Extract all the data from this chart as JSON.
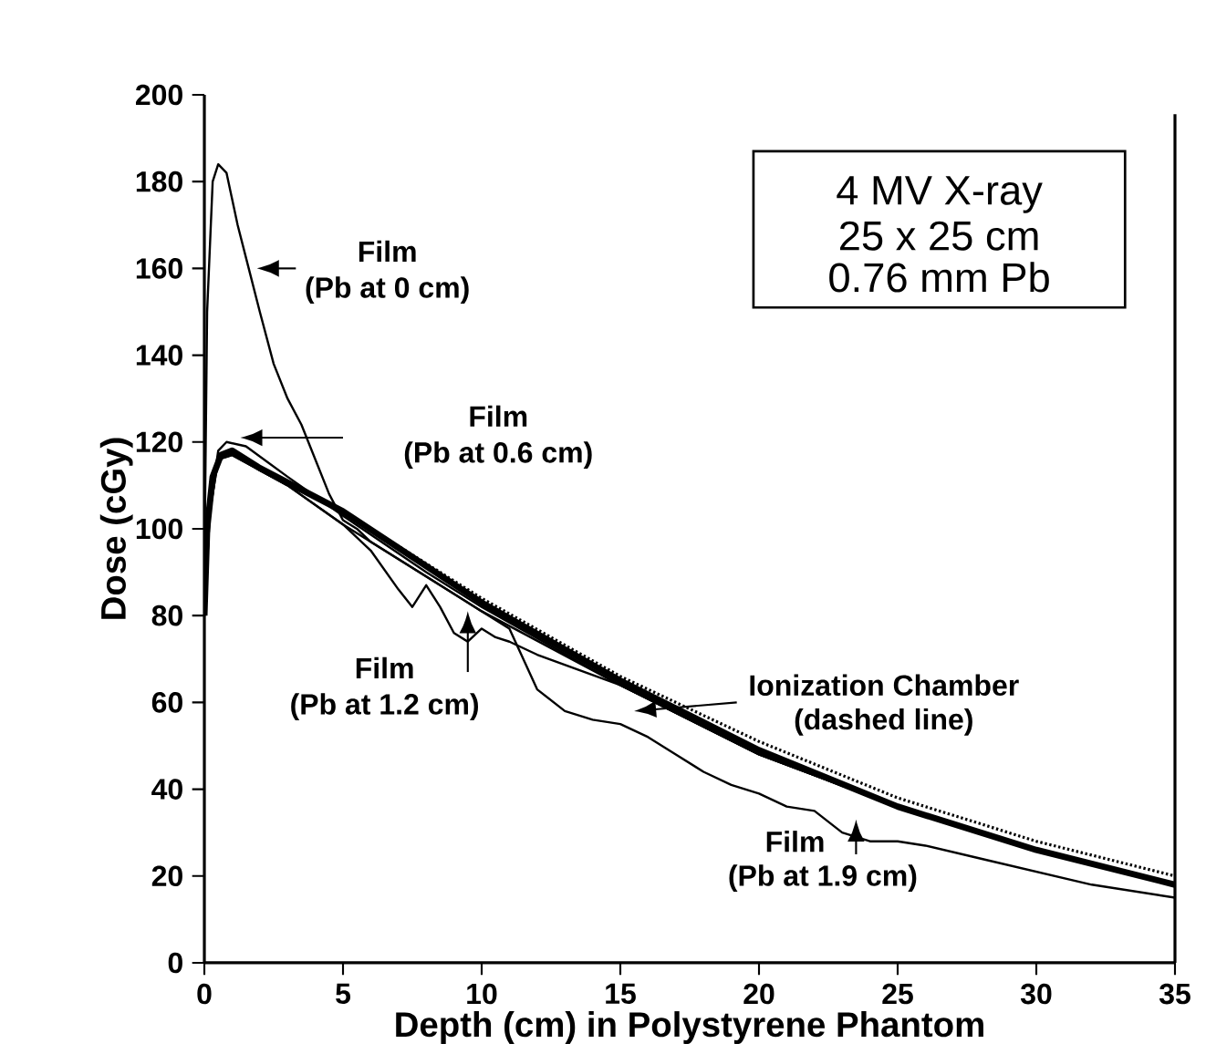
{
  "chart_data": {
    "type": "line",
    "xlabel": "Depth (cm) in Polystyrene Phantom",
    "ylabel": "Dose (cGy)",
    "xlim": [
      0,
      35
    ],
    "xticks": [
      0,
      5,
      10,
      15,
      20,
      25,
      30,
      35
    ],
    "ylim": [
      0,
      200
    ],
    "yticks": [
      0,
      20,
      40,
      60,
      80,
      100,
      120,
      140,
      160,
      180,
      200
    ],
    "grid": false,
    "marker": "none",
    "series": [
      {
        "color": "#000000",
        "line_style": "solid",
        "x": [
          0,
          0.1,
          0.3,
          0.5,
          0.8,
          1.2,
          1.6,
          2,
          2.5,
          3,
          3.5,
          4,
          4.5,
          5,
          5.5,
          6,
          8,
          10,
          15,
          20,
          25,
          30,
          35
        ],
        "values": [
          90,
          150,
          180,
          184,
          182,
          170,
          160,
          150,
          138,
          130,
          124,
          116,
          108,
          102,
          100,
          97,
          89,
          81,
          64,
          48,
          36,
          26,
          18
        ]
      },
      {
        "color": "#000000",
        "line_style": "solid",
        "x": [
          0,
          0.2,
          0.5,
          0.8,
          1.5,
          3,
          5,
          8,
          10,
          15,
          20,
          25,
          30,
          35
        ],
        "values": [
          80,
          105,
          118,
          120,
          119,
          112,
          103,
          90,
          82,
          64,
          48,
          36,
          26,
          18
        ]
      },
      {
        "color": "#000000",
        "line_style": "solid",
        "x": [
          0,
          0.2,
          0.5,
          1,
          3,
          5,
          6,
          7,
          7.5,
          8,
          8.5,
          9,
          9.5,
          10,
          10.5,
          11,
          12,
          15,
          20,
          25,
          30,
          35
        ],
        "values": [
          80,
          104,
          116,
          117,
          110,
          101,
          95,
          86,
          82,
          87,
          82,
          76,
          74,
          77,
          75,
          74,
          71,
          64,
          48,
          36,
          26,
          18
        ]
      },
      {
        "color": "#000000",
        "line_style": "solid",
        "x": [
          0,
          0.2,
          0.5,
          1,
          3,
          5,
          8,
          10,
          11,
          11.5,
          12,
          13,
          14,
          15,
          16,
          17,
          18,
          19,
          20,
          21,
          22,
          23,
          24,
          25,
          26,
          28,
          30,
          32,
          35
        ],
        "values": [
          80,
          104,
          116,
          117,
          110,
          101,
          89,
          81,
          77,
          70,
          63,
          58,
          56,
          55,
          52,
          48,
          44,
          41,
          39,
          36,
          35,
          30,
          28,
          28,
          27,
          24,
          21,
          18,
          15
        ]
      },
      {
        "color": "#000000",
        "line_style": "solid",
        "x": [
          0,
          0.1,
          0.3,
          0.6,
          1,
          2,
          5,
          10,
          15,
          20,
          25,
          30,
          35
        ],
        "values": [
          80,
          100,
          112,
          117,
          118,
          114,
          104,
          83,
          65,
          49,
          36,
          26,
          18
        ]
      },
      {
        "color": "#000000",
        "line_style": "dashed",
        "x": [
          2,
          5,
          10,
          15,
          20,
          25,
          30,
          35
        ],
        "values": [
          114,
          104,
          84,
          66,
          51,
          38,
          28,
          20
        ]
      }
    ],
    "annotations": [
      "4 MV X-ray",
      "25 x 25 cm",
      "0.76 mm Pb",
      "Film",
      "(Pb at 0 cm)",
      "Film",
      "(Pb at 0.6 cm)",
      "Film",
      "(Pb at 1.2 cm)",
      "Ionization Chamber",
      "(dashed line)",
      "Film",
      "(Pb at 1.9 cm)"
    ]
  }
}
